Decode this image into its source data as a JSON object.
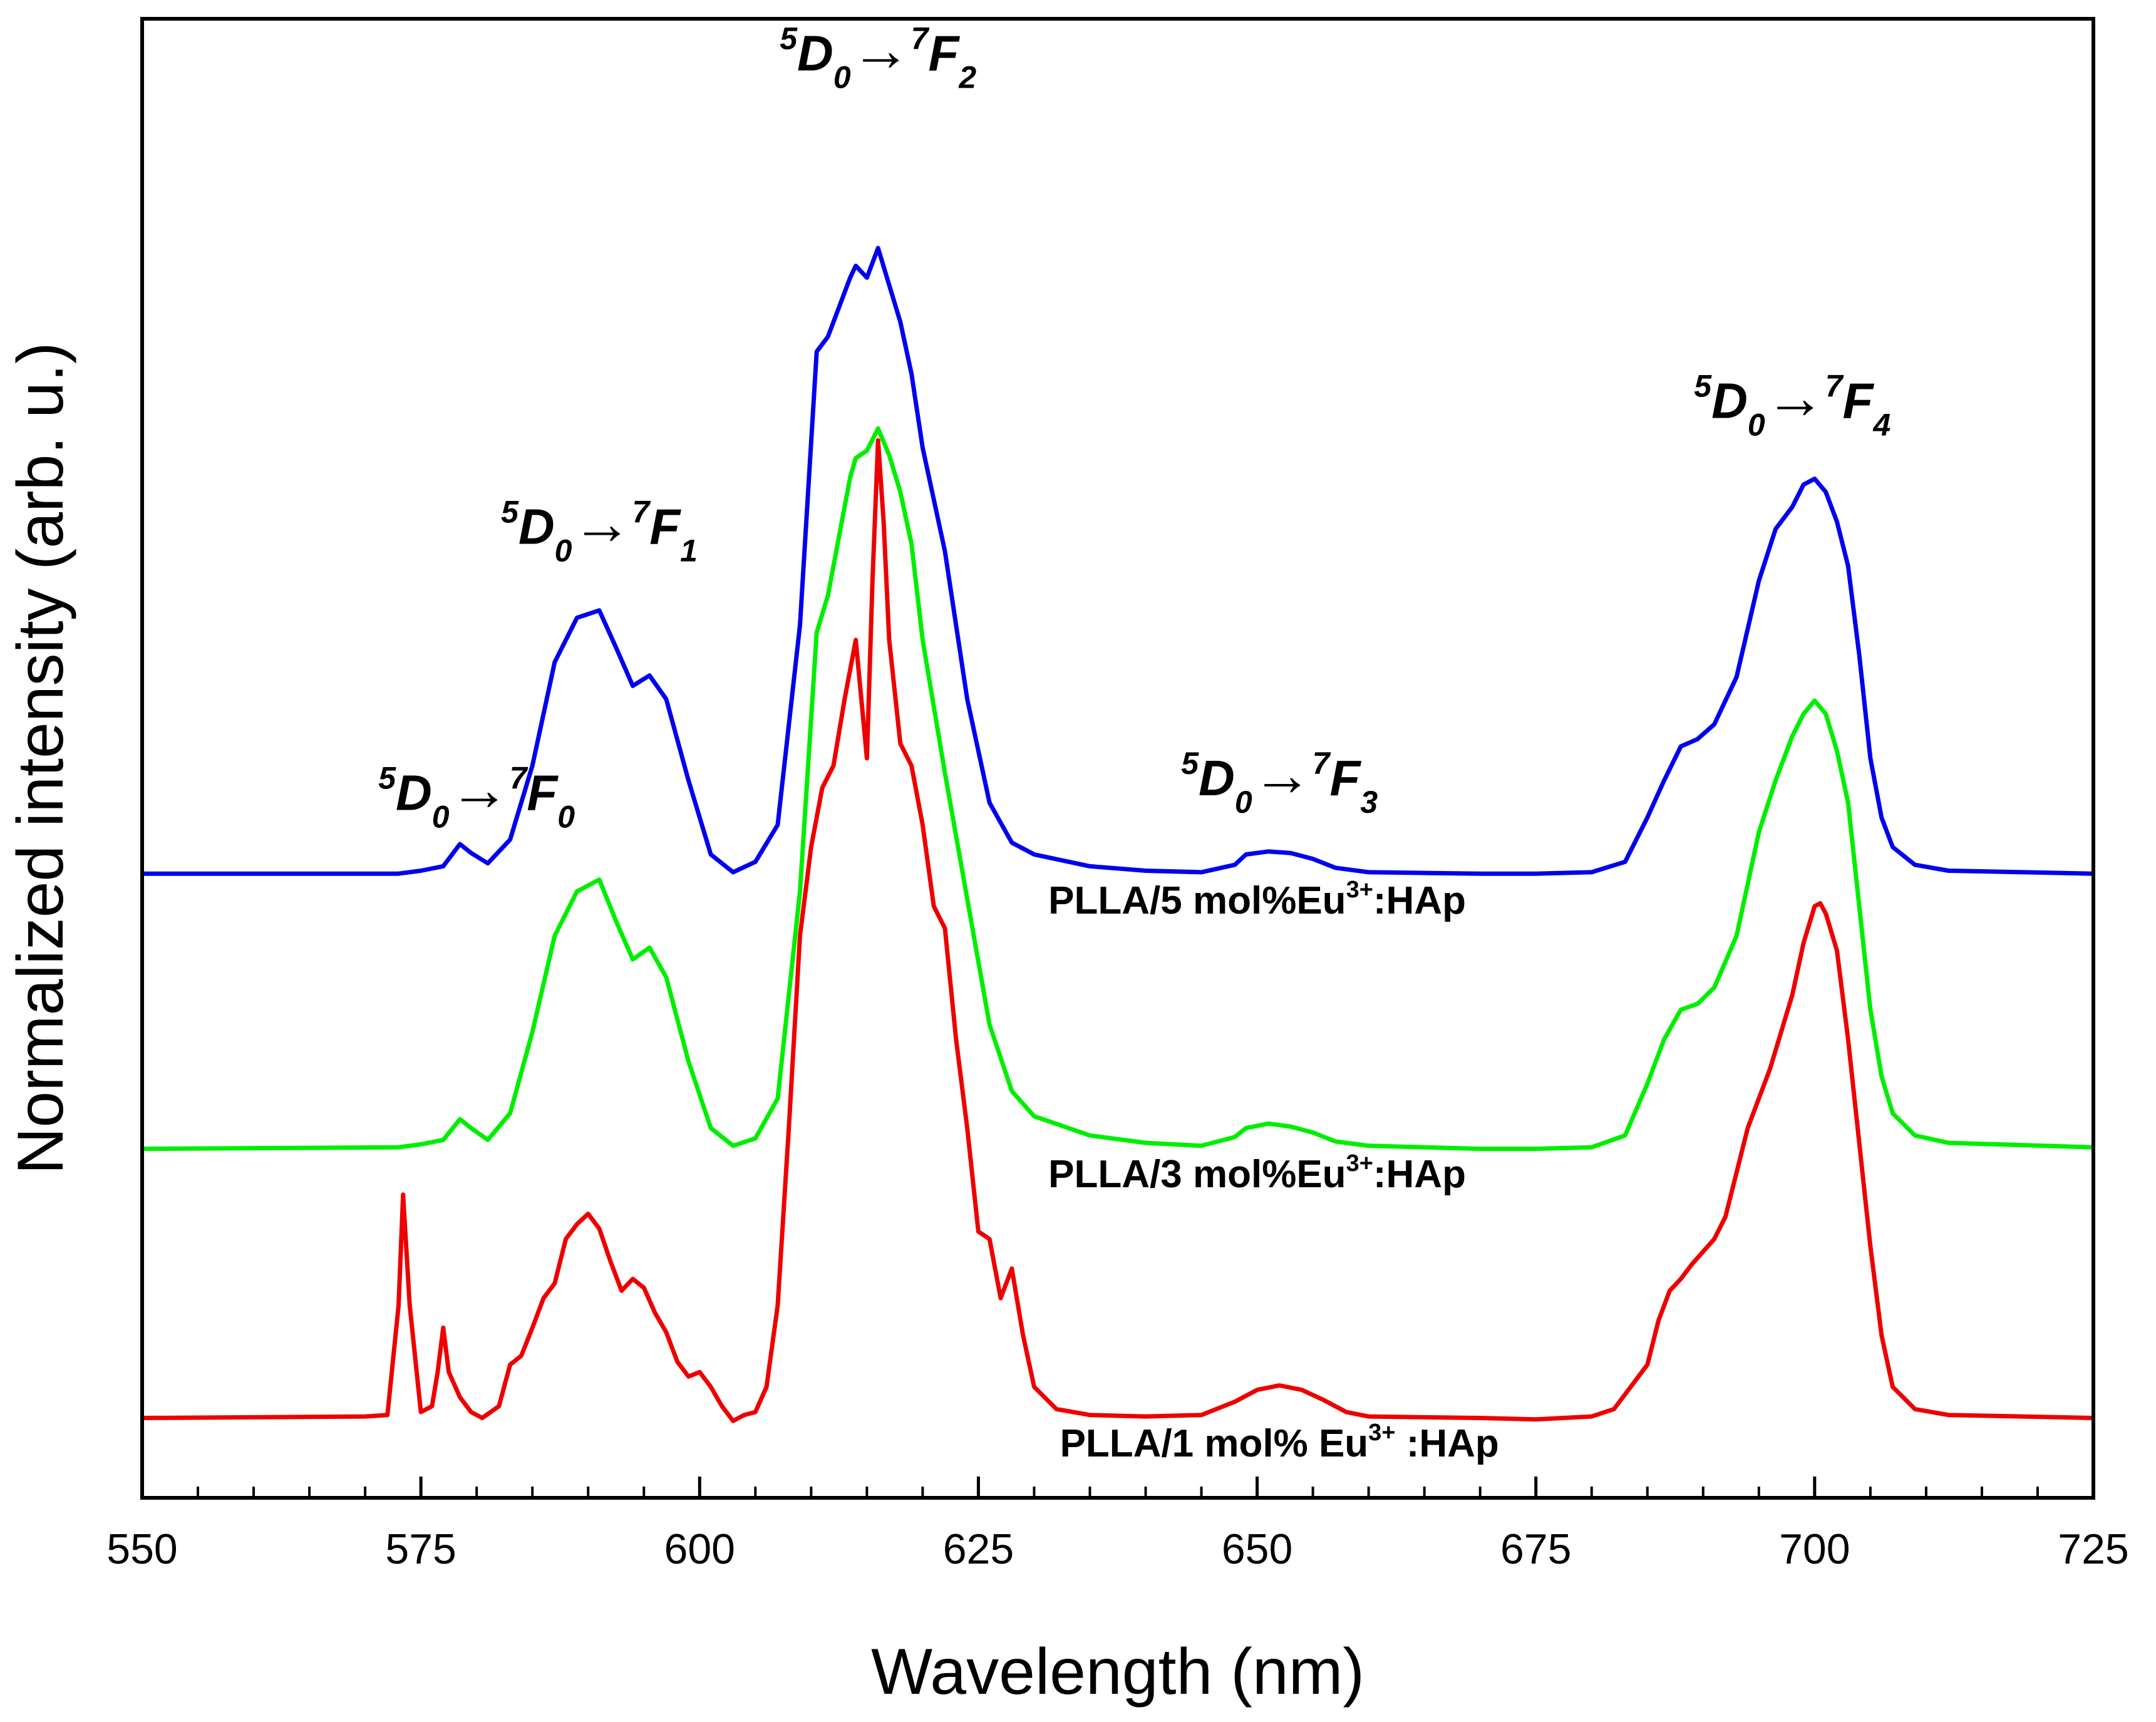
{
  "chart_data": {
    "type": "line",
    "title": "",
    "xlabel": "Wavelength (nm)",
    "ylabel": "Normalized intensity (arb. u.)",
    "xlim": [
      550,
      725
    ],
    "ylim": [
      0,
      100
    ],
    "x_ticks": [
      550,
      575,
      600,
      625,
      650,
      675,
      700,
      725
    ],
    "x_tick_labels": [
      "550",
      "575",
      "600",
      "625",
      "650",
      "675",
      "700",
      "725"
    ],
    "y_ticks_labeled": false,
    "grid": false,
    "legend": "none",
    "colors": {
      "blue": "#0000ee",
      "green": "#00ee00",
      "red": "#ee0000",
      "axis": "#000000"
    },
    "series": [
      {
        "name": "PLLA/5 mol%Eu3+:HAp",
        "label_parts": {
          "prefix": "PLLA/5 mol%Eu",
          "sup": "3+",
          "suffix": ":HAp"
        },
        "color": "#0000ee",
        "points": [
          [
            550,
            42.2
          ],
          [
            573,
            42.2
          ],
          [
            575,
            42.4
          ],
          [
            577,
            42.7
          ],
          [
            578.5,
            44.2
          ],
          [
            579.5,
            43.6
          ],
          [
            581,
            42.9
          ],
          [
            583,
            44.5
          ],
          [
            585,
            49.5
          ],
          [
            587,
            56.5
          ],
          [
            589,
            59.5
          ],
          [
            591,
            60.0
          ],
          [
            592.5,
            57.5
          ],
          [
            594,
            54.9
          ],
          [
            595.5,
            55.6
          ],
          [
            597,
            54.0
          ],
          [
            599,
            48.5
          ],
          [
            601,
            43.5
          ],
          [
            603,
            42.3
          ],
          [
            605,
            43.0
          ],
          [
            607,
            45.5
          ],
          [
            609,
            59.0
          ],
          [
            610.5,
            77.5
          ],
          [
            611.5,
            78.5
          ],
          [
            612.5,
            80.5
          ],
          [
            613.5,
            82.5
          ],
          [
            614,
            83.3
          ],
          [
            615,
            82.5
          ],
          [
            616,
            84.5
          ],
          [
            617,
            82.0
          ],
          [
            618,
            79.5
          ],
          [
            619,
            76.0
          ],
          [
            620,
            71.0
          ],
          [
            622,
            64.0
          ],
          [
            624,
            54.0
          ],
          [
            626,
            47.0
          ],
          [
            628,
            44.3
          ],
          [
            630,
            43.5
          ],
          [
            635,
            42.7
          ],
          [
            640,
            42.4
          ],
          [
            645,
            42.3
          ],
          [
            648,
            42.8
          ],
          [
            649,
            43.5
          ],
          [
            651,
            43.7
          ],
          [
            653,
            43.6
          ],
          [
            655,
            43.2
          ],
          [
            657,
            42.6
          ],
          [
            660,
            42.3
          ],
          [
            670,
            42.2
          ],
          [
            675,
            42.2
          ],
          [
            680,
            42.3
          ],
          [
            683,
            43.0
          ],
          [
            685,
            46.0
          ],
          [
            686.5,
            48.5
          ],
          [
            688,
            50.8
          ],
          [
            689.5,
            51.3
          ],
          [
            691,
            52.3
          ],
          [
            693,
            55.5
          ],
          [
            695,
            62.0
          ],
          [
            696.5,
            65.5
          ],
          [
            698,
            67.0
          ],
          [
            699,
            68.5
          ],
          [
            700,
            68.9
          ],
          [
            701,
            68.0
          ],
          [
            702,
            66.0
          ],
          [
            703,
            63.0
          ],
          [
            704,
            57.0
          ],
          [
            705,
            50.0
          ],
          [
            706,
            46.0
          ],
          [
            707,
            44.0
          ],
          [
            709,
            42.8
          ],
          [
            712,
            42.4
          ],
          [
            725,
            42.2
          ]
        ]
      },
      {
        "name": "PLLA/3 mol%Eu3+:HAp",
        "label_parts": {
          "prefix": "PLLA/3 mol%Eu",
          "sup": "3+",
          "suffix": ":HAp"
        },
        "color": "#00ee00",
        "points": [
          [
            550,
            23.6
          ],
          [
            573,
            23.7
          ],
          [
            575,
            23.9
          ],
          [
            577,
            24.2
          ],
          [
            578.5,
            25.6
          ],
          [
            579.5,
            25.0
          ],
          [
            581,
            24.2
          ],
          [
            583,
            26.0
          ],
          [
            585,
            31.5
          ],
          [
            587,
            38.0
          ],
          [
            589,
            41.0
          ],
          [
            591,
            41.8
          ],
          [
            592.5,
            39.0
          ],
          [
            594,
            36.4
          ],
          [
            595.5,
            37.2
          ],
          [
            597,
            35.2
          ],
          [
            599,
            29.5
          ],
          [
            601,
            25.0
          ],
          [
            603,
            23.8
          ],
          [
            605,
            24.3
          ],
          [
            607,
            27.0
          ],
          [
            609,
            41.0
          ],
          [
            610.5,
            58.5
          ],
          [
            611.5,
            61.0
          ],
          [
            612.5,
            65.0
          ],
          [
            613.5,
            69.0
          ],
          [
            614,
            70.3
          ],
          [
            615,
            70.8
          ],
          [
            616,
            72.3
          ],
          [
            617,
            70.5
          ],
          [
            618,
            68.0
          ],
          [
            619,
            64.5
          ],
          [
            620,
            58.0
          ],
          [
            622,
            49.0
          ],
          [
            624,
            40.5
          ],
          [
            626,
            32.0
          ],
          [
            628,
            27.5
          ],
          [
            630,
            25.8
          ],
          [
            635,
            24.5
          ],
          [
            640,
            24.0
          ],
          [
            645,
            23.8
          ],
          [
            648,
            24.4
          ],
          [
            649,
            25.0
          ],
          [
            651,
            25.3
          ],
          [
            653,
            25.1
          ],
          [
            655,
            24.7
          ],
          [
            657,
            24.1
          ],
          [
            660,
            23.8
          ],
          [
            670,
            23.6
          ],
          [
            675,
            23.6
          ],
          [
            680,
            23.7
          ],
          [
            683,
            24.5
          ],
          [
            685,
            28.0
          ],
          [
            686.5,
            31.0
          ],
          [
            688,
            33.0
          ],
          [
            689.5,
            33.4
          ],
          [
            691,
            34.5
          ],
          [
            693,
            38.0
          ],
          [
            695,
            45.0
          ],
          [
            696.5,
            48.5
          ],
          [
            698,
            51.5
          ],
          [
            699,
            53.0
          ],
          [
            700,
            53.9
          ],
          [
            701,
            53.0
          ],
          [
            702,
            50.5
          ],
          [
            703,
            47.0
          ],
          [
            704,
            40.0
          ],
          [
            705,
            33.0
          ],
          [
            706,
            28.5
          ],
          [
            707,
            26.0
          ],
          [
            709,
            24.5
          ],
          [
            712,
            24.0
          ],
          [
            725,
            23.7
          ]
        ]
      },
      {
        "name": "PLLA/1 mol% Eu3+ :HAp",
        "label_parts": {
          "prefix": "PLLA/1 mol% Eu",
          "sup": "3+",
          "suffix": " :HAp"
        },
        "color": "#ee0000",
        "points": [
          [
            550,
            5.4
          ],
          [
            570,
            5.5
          ],
          [
            572,
            5.6
          ],
          [
            573,
            13.0
          ],
          [
            573.4,
            20.5
          ],
          [
            574,
            13.0
          ],
          [
            575,
            5.8
          ],
          [
            576,
            6.2
          ],
          [
            576.5,
            8.5
          ],
          [
            577,
            11.5
          ],
          [
            577.5,
            8.5
          ],
          [
            578.5,
            6.8
          ],
          [
            579.5,
            5.8
          ],
          [
            580.5,
            5.4
          ],
          [
            582,
            6.2
          ],
          [
            583,
            9.0
          ],
          [
            584,
            9.6
          ],
          [
            585,
            11.5
          ],
          [
            586,
            13.5
          ],
          [
            587,
            14.5
          ],
          [
            588,
            17.5
          ],
          [
            589,
            18.5
          ],
          [
            590,
            19.2
          ],
          [
            591,
            18.2
          ],
          [
            592,
            16.0
          ],
          [
            593,
            14.0
          ],
          [
            594,
            14.8
          ],
          [
            595,
            14.2
          ],
          [
            596,
            12.5
          ],
          [
            597,
            11.2
          ],
          [
            598,
            9.2
          ],
          [
            599,
            8.2
          ],
          [
            600,
            8.5
          ],
          [
            601,
            7.5
          ],
          [
            602,
            6.2
          ],
          [
            603,
            5.2
          ],
          [
            604,
            5.6
          ],
          [
            605,
            5.8
          ],
          [
            606,
            7.5
          ],
          [
            607,
            13.0
          ],
          [
            608,
            25.0
          ],
          [
            609,
            38.0
          ],
          [
            610,
            44.0
          ],
          [
            611,
            48.0
          ],
          [
            612,
            49.5
          ],
          [
            613,
            54.0
          ],
          [
            614,
            58.0
          ],
          [
            615,
            50.0
          ],
          [
            615.5,
            62.0
          ],
          [
            616,
            71.5
          ],
          [
            616.5,
            66.0
          ],
          [
            617,
            58.0
          ],
          [
            618,
            51.0
          ],
          [
            619,
            49.5
          ],
          [
            620,
            45.5
          ],
          [
            621,
            40.0
          ],
          [
            622,
            38.5
          ],
          [
            623,
            31.0
          ],
          [
            624,
            25.0
          ],
          [
            625,
            18.0
          ],
          [
            626,
            17.5
          ],
          [
            627,
            13.5
          ],
          [
            628,
            15.5
          ],
          [
            629,
            11.0
          ],
          [
            630,
            7.5
          ],
          [
            632,
            6.0
          ],
          [
            635,
            5.6
          ],
          [
            640,
            5.5
          ],
          [
            645,
            5.6
          ],
          [
            648,
            6.5
          ],
          [
            650,
            7.3
          ],
          [
            652,
            7.6
          ],
          [
            654,
            7.3
          ],
          [
            656,
            6.6
          ],
          [
            658,
            5.8
          ],
          [
            660,
            5.5
          ],
          [
            670,
            5.4
          ],
          [
            675,
            5.3
          ],
          [
            680,
            5.5
          ],
          [
            682,
            6.0
          ],
          [
            684,
            8.0
          ],
          [
            685,
            9.0
          ],
          [
            686,
            12.0
          ],
          [
            687,
            14.0
          ],
          [
            688,
            14.8
          ],
          [
            689,
            15.8
          ],
          [
            691,
            17.5
          ],
          [
            692,
            19.0
          ],
          [
            694,
            25.0
          ],
          [
            696,
            29.0
          ],
          [
            698,
            34.0
          ],
          [
            699,
            37.5
          ],
          [
            700,
            40.0
          ],
          [
            700.5,
            40.2
          ],
          [
            701,
            39.5
          ],
          [
            702,
            37.0
          ],
          [
            703,
            31.0
          ],
          [
            704,
            24.0
          ],
          [
            705,
            17.0
          ],
          [
            706,
            11.0
          ],
          [
            707,
            7.5
          ],
          [
            709,
            6.0
          ],
          [
            712,
            5.6
          ],
          [
            725,
            5.4
          ]
        ]
      }
    ],
    "annotations": [
      {
        "id": "f0",
        "upper": "5",
        "level": "D",
        "level_sub": "0",
        "arrow": "→",
        "upper2": "7",
        "level2": "F",
        "level2_sub": "0",
        "x": 580,
        "y": 46.5
      },
      {
        "id": "f1",
        "upper": "5",
        "level": "D",
        "level_sub": "0",
        "arrow": "→",
        "upper2": "7",
        "level2": "F",
        "level2_sub": "1",
        "x": 591,
        "y": 64.5
      },
      {
        "id": "f2",
        "upper": "5",
        "level": "D",
        "level_sub": "0",
        "arrow": "→",
        "upper2": "7",
        "level2": "F",
        "level2_sub": "2",
        "x": 616,
        "y": 96.5
      },
      {
        "id": "f3",
        "upper": "5",
        "level": "D",
        "level_sub": "0",
        "arrow": "→",
        "upper2": "7",
        "level2": "F",
        "level2_sub": "3",
        "x": 652,
        "y": 47.5
      },
      {
        "id": "f4",
        "upper": "5",
        "level": "D",
        "level_sub": "0",
        "arrow": "→",
        "upper2": "7",
        "level2": "F",
        "level2_sub": "4",
        "x": 698,
        "y": 73.0
      }
    ],
    "series_label_positions": [
      {
        "series": 0,
        "x": 650,
        "y": 39.5
      },
      {
        "series": 1,
        "x": 650,
        "y": 21.0
      },
      {
        "series": 2,
        "x": 652,
        "y": 2.8
      }
    ]
  }
}
